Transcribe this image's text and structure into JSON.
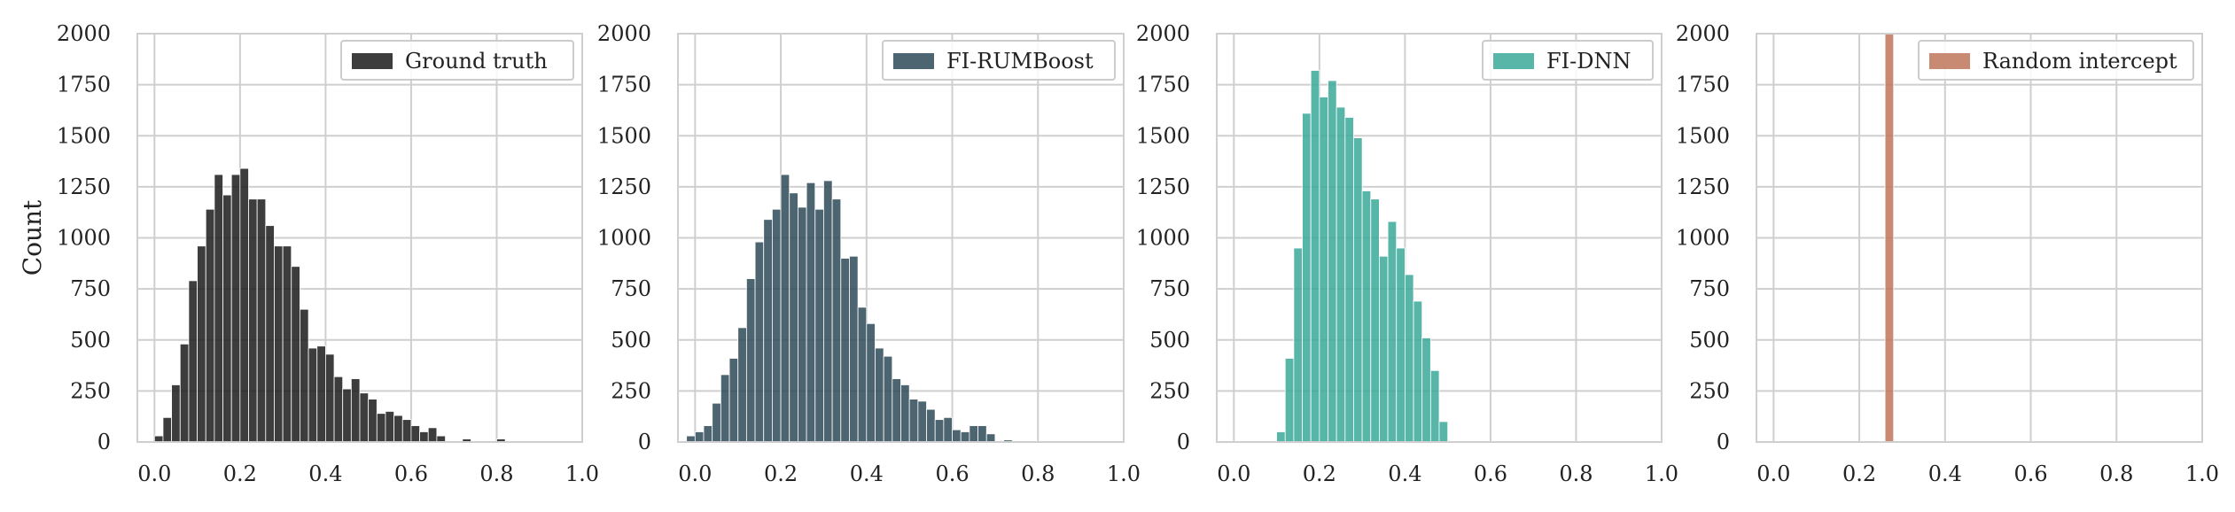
{
  "chart_data": [
    {
      "type": "bar",
      "subtype": "histogram",
      "legend": {
        "label": "Ground truth",
        "placement": "top-right"
      },
      "color": "#1b1b1b",
      "ylabel": "Count",
      "xlim": [
        -0.04,
        1.0
      ],
      "ylim": [
        0,
        2000
      ],
      "xticks": [
        "0.0",
        "0.2",
        "0.4",
        "0.6",
        "0.8",
        "1.0"
      ],
      "yticks": [
        "0",
        "250",
        "500",
        "750",
        "1000",
        "1250",
        "1500",
        "1750",
        "2000"
      ],
      "grid": true,
      "bin_width": 0.02,
      "bins": [
        {
          "x": 0.01,
          "count": 30
        },
        {
          "x": 0.03,
          "count": 120
        },
        {
          "x": 0.05,
          "count": 280
        },
        {
          "x": 0.07,
          "count": 480
        },
        {
          "x": 0.09,
          "count": 790
        },
        {
          "x": 0.11,
          "count": 960
        },
        {
          "x": 0.13,
          "count": 1140
        },
        {
          "x": 0.15,
          "count": 1310
        },
        {
          "x": 0.17,
          "count": 1210
        },
        {
          "x": 0.19,
          "count": 1310
        },
        {
          "x": 0.21,
          "count": 1340
        },
        {
          "x": 0.23,
          "count": 1190
        },
        {
          "x": 0.25,
          "count": 1190
        },
        {
          "x": 0.27,
          "count": 1060
        },
        {
          "x": 0.29,
          "count": 960
        },
        {
          "x": 0.31,
          "count": 960
        },
        {
          "x": 0.33,
          "count": 860
        },
        {
          "x": 0.35,
          "count": 650
        },
        {
          "x": 0.37,
          "count": 460
        },
        {
          "x": 0.39,
          "count": 470
        },
        {
          "x": 0.41,
          "count": 430
        },
        {
          "x": 0.43,
          "count": 320
        },
        {
          "x": 0.45,
          "count": 260
        },
        {
          "x": 0.47,
          "count": 310
        },
        {
          "x": 0.49,
          "count": 240
        },
        {
          "x": 0.51,
          "count": 210
        },
        {
          "x": 0.53,
          "count": 140
        },
        {
          "x": 0.55,
          "count": 150
        },
        {
          "x": 0.57,
          "count": 130
        },
        {
          "x": 0.59,
          "count": 110
        },
        {
          "x": 0.61,
          "count": 80
        },
        {
          "x": 0.63,
          "count": 50
        },
        {
          "x": 0.65,
          "count": 70
        },
        {
          "x": 0.67,
          "count": 30
        },
        {
          "x": 0.73,
          "count": 15
        },
        {
          "x": 0.81,
          "count": 15
        }
      ]
    },
    {
      "type": "bar",
      "subtype": "histogram",
      "legend": {
        "label": "FI-RUMBoost",
        "placement": "top-right"
      },
      "color": "#2e4a57",
      "xlim": [
        -0.04,
        1.0
      ],
      "ylim": [
        0,
        2000
      ],
      "xticks": [
        "0.0",
        "0.2",
        "0.4",
        "0.6",
        "0.8",
        "1.0"
      ],
      "yticks": [
        "0",
        "250",
        "500",
        "750",
        "1000",
        "1250",
        "1500",
        "1750",
        "2000"
      ],
      "grid": true,
      "bin_width": 0.02,
      "bins": [
        {
          "x": -0.01,
          "count": 30
        },
        {
          "x": 0.01,
          "count": 50
        },
        {
          "x": 0.03,
          "count": 80
        },
        {
          "x": 0.05,
          "count": 190
        },
        {
          "x": 0.07,
          "count": 330
        },
        {
          "x": 0.09,
          "count": 410
        },
        {
          "x": 0.11,
          "count": 560
        },
        {
          "x": 0.13,
          "count": 800
        },
        {
          "x": 0.15,
          "count": 980
        },
        {
          "x": 0.17,
          "count": 1090
        },
        {
          "x": 0.19,
          "count": 1140
        },
        {
          "x": 0.21,
          "count": 1310
        },
        {
          "x": 0.23,
          "count": 1220
        },
        {
          "x": 0.25,
          "count": 1150
        },
        {
          "x": 0.27,
          "count": 1270
        },
        {
          "x": 0.29,
          "count": 1140
        },
        {
          "x": 0.31,
          "count": 1280
        },
        {
          "x": 0.33,
          "count": 1190
        },
        {
          "x": 0.35,
          "count": 900
        },
        {
          "x": 0.37,
          "count": 910
        },
        {
          "x": 0.39,
          "count": 660
        },
        {
          "x": 0.41,
          "count": 580
        },
        {
          "x": 0.43,
          "count": 460
        },
        {
          "x": 0.45,
          "count": 420
        },
        {
          "x": 0.47,
          "count": 310
        },
        {
          "x": 0.49,
          "count": 280
        },
        {
          "x": 0.51,
          "count": 210
        },
        {
          "x": 0.53,
          "count": 200
        },
        {
          "x": 0.55,
          "count": 160
        },
        {
          "x": 0.57,
          "count": 110
        },
        {
          "x": 0.59,
          "count": 120
        },
        {
          "x": 0.61,
          "count": 60
        },
        {
          "x": 0.63,
          "count": 50
        },
        {
          "x": 0.65,
          "count": 80
        },
        {
          "x": 0.67,
          "count": 80
        },
        {
          "x": 0.69,
          "count": 40
        },
        {
          "x": 0.73,
          "count": 10
        }
      ]
    },
    {
      "type": "bar",
      "subtype": "histogram",
      "legend": {
        "label": "FI-DNN",
        "placement": "top-right"
      },
      "color": "#3ba99a",
      "xlim": [
        -0.04,
        1.0
      ],
      "ylim": [
        0,
        2000
      ],
      "xticks": [
        "0.0",
        "0.2",
        "0.4",
        "0.6",
        "0.8",
        "1.0"
      ],
      "yticks": [
        "0",
        "250",
        "500",
        "750",
        "1000",
        "1250",
        "1500",
        "1750",
        "2000"
      ],
      "grid": true,
      "bin_width": 0.02,
      "bins": [
        {
          "x": 0.11,
          "count": 50
        },
        {
          "x": 0.13,
          "count": 410
        },
        {
          "x": 0.15,
          "count": 950
        },
        {
          "x": 0.17,
          "count": 1610
        },
        {
          "x": 0.19,
          "count": 1820
        },
        {
          "x": 0.21,
          "count": 1690
        },
        {
          "x": 0.23,
          "count": 1770
        },
        {
          "x": 0.25,
          "count": 1640
        },
        {
          "x": 0.27,
          "count": 1590
        },
        {
          "x": 0.29,
          "count": 1490
        },
        {
          "x": 0.31,
          "count": 1230
        },
        {
          "x": 0.33,
          "count": 1190
        },
        {
          "x": 0.35,
          "count": 910
        },
        {
          "x": 0.37,
          "count": 1080
        },
        {
          "x": 0.39,
          "count": 950
        },
        {
          "x": 0.41,
          "count": 820
        },
        {
          "x": 0.43,
          "count": 690
        },
        {
          "x": 0.45,
          "count": 510
        },
        {
          "x": 0.47,
          "count": 350
        },
        {
          "x": 0.49,
          "count": 100
        }
      ]
    },
    {
      "type": "bar",
      "subtype": "histogram",
      "legend": {
        "label": "Random intercept",
        "placement": "top-right"
      },
      "color": "#c0765c",
      "xlim": [
        -0.04,
        1.0
      ],
      "ylim": [
        0,
        2000
      ],
      "xticks": [
        "0.0",
        "0.2",
        "0.4",
        "0.6",
        "0.8",
        "1.0"
      ],
      "yticks": [
        "0",
        "250",
        "500",
        "750",
        "1000",
        "1250",
        "1500",
        "1750",
        "2000"
      ],
      "grid": true,
      "bin_width": 0.02,
      "bins": [
        {
          "x": 0.27,
          "count": 2000
        }
      ]
    }
  ]
}
